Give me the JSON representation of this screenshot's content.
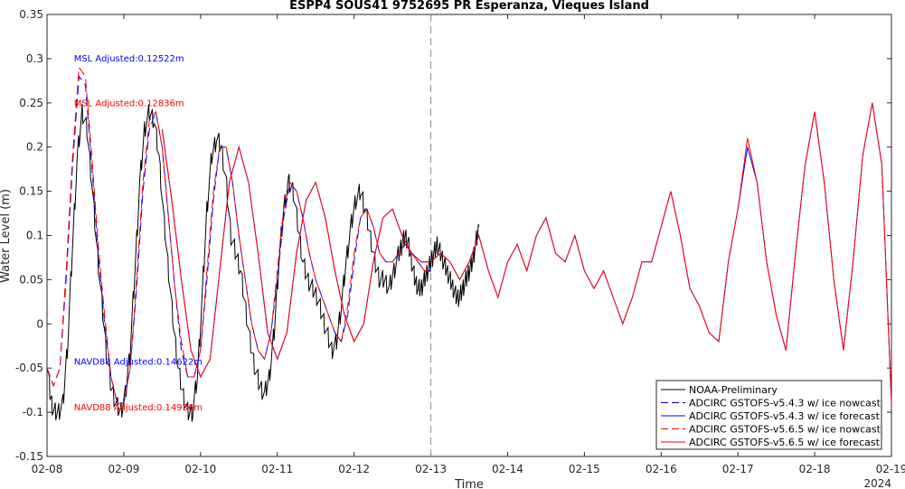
{
  "chart_data": {
    "type": "line",
    "title": "ESPP4 SOUS41 9752695 PR Esperanza, Vieques Island",
    "xlabel": "Time",
    "ylabel": "Water Level (m)",
    "year_label": "2024",
    "ylim": [
      -0.15,
      0.35
    ],
    "yticks": [
      "-0.15",
      "-0.1",
      "-0.05",
      "0",
      "0.05",
      "0.1",
      "0.15",
      "0.2",
      "0.25",
      "0.3",
      "0.35"
    ],
    "xlim": [
      "02-08",
      "02-19"
    ],
    "xticks": [
      "02-08",
      "02-09",
      "02-10",
      "02-11",
      "02-12",
      "02-13",
      "02-14",
      "02-15",
      "02-16",
      "02-17",
      "02-18",
      "02-19"
    ],
    "grid": false,
    "legend_position": "bottom-right",
    "nowcast_forecast_split": "02-13",
    "annotations": [
      {
        "text": "MSL Adjusted:0.12522m",
        "x": "02-08 08:24",
        "y": 0.297,
        "color": "#0000ff"
      },
      {
        "text": "MSL Adjusted:0.12836m",
        "x": "02-08 08:24",
        "y": 0.246,
        "color": "#ff0000"
      },
      {
        "text": "NAVD88 Adjusted:0.14622m",
        "x": "02-08 08:24",
        "y": -0.046,
        "color": "#0000ff"
      },
      {
        "text": "NAVD88 Adjusted:0.14936m",
        "x": "02-08 08:24",
        "y": -0.098,
        "color": "#ff0000"
      }
    ],
    "series": [
      {
        "name": "NOAA-Preliminary",
        "color": "#000000",
        "dash": "solid",
        "noisy": true,
        "x": [
          "02-08 00:00",
          "02-08 01:00",
          "02-08 02:00",
          "02-08 03:30",
          "02-08 05:00",
          "02-08 06:30",
          "02-08 08:00",
          "02-08 09:30",
          "02-08 11:00",
          "02-08 12:30",
          "02-08 14:00",
          "02-08 15:30",
          "02-08 17:00",
          "02-08 18:30",
          "02-08 20:00",
          "02-08 21:30",
          "02-08 23:00",
          "02-09 00:30",
          "02-09 02:00",
          "02-09 03:30",
          "02-09 05:00",
          "02-09 06:30",
          "02-09 08:00",
          "02-09 09:30",
          "02-09 11:00",
          "02-09 12:30",
          "02-09 14:00",
          "02-09 15:30",
          "02-09 17:00",
          "02-09 18:30",
          "02-09 20:00",
          "02-09 21:30",
          "02-09 23:00",
          "02-10 00:30",
          "02-10 02:00",
          "02-10 03:30",
          "02-10 05:00",
          "02-10 06:30",
          "02-10 08:00",
          "02-10 09:30",
          "02-10 11:00",
          "02-10 12:30",
          "02-10 14:00",
          "02-10 15:30",
          "02-10 17:00",
          "02-10 18:30",
          "02-10 20:00",
          "02-10 21:30",
          "02-10 23:00",
          "02-11 00:30",
          "02-11 02:00",
          "02-11 03:30",
          "02-11 05:00",
          "02-11 06:30",
          "02-11 08:00",
          "02-11 09:30",
          "02-11 11:00",
          "02-11 12:30",
          "02-11 14:00",
          "02-11 15:30",
          "02-11 17:00",
          "02-11 18:30",
          "02-11 20:00",
          "02-11 21:30",
          "02-11 23:00",
          "02-12 00:30",
          "02-12 02:00",
          "02-12 03:30",
          "02-12 05:00",
          "02-12 06:30",
          "02-12 08:00",
          "02-12 09:30",
          "02-12 11:00",
          "02-12 12:30",
          "02-12 14:00",
          "02-12 15:00",
          "02-12 16:00",
          "02-12 17:00",
          "02-12 18:00",
          "02-12 19:00",
          "02-12 20:00",
          "02-12 21:00",
          "02-12 22:00",
          "02-12 23:00",
          "02-13 00:00",
          "02-13 01:00",
          "02-13 02:00",
          "02-13 03:00",
          "02-13 04:00",
          "02-13 05:00",
          "02-13 06:00",
          "02-13 07:00",
          "02-13 08:00",
          "02-13 09:00",
          "02-13 10:00",
          "02-13 11:00",
          "02-13 12:00",
          "02-13 13:00",
          "02-13 14:00",
          "02-13 15:00"
        ],
        "y": [
          -0.04,
          -0.08,
          -0.1,
          -0.1,
          -0.09,
          -0.02,
          0.09,
          0.19,
          0.24,
          0.22,
          0.16,
          0.09,
          0.03,
          -0.03,
          -0.07,
          -0.09,
          -0.1,
          -0.08,
          -0.03,
          0.06,
          0.16,
          0.22,
          0.24,
          0.23,
          0.19,
          0.12,
          0.06,
          0.0,
          -0.05,
          -0.08,
          -0.1,
          -0.1,
          -0.06,
          0.03,
          0.13,
          0.19,
          0.21,
          0.2,
          0.16,
          0.1,
          0.08,
          0.06,
          0.02,
          -0.02,
          -0.05,
          -0.07,
          -0.08,
          -0.06,
          -0.01,
          0.07,
          0.13,
          0.16,
          0.15,
          0.11,
          0.07,
          0.05,
          0.04,
          0.03,
          0.01,
          -0.01,
          -0.03,
          -0.02,
          0.02,
          0.07,
          0.11,
          0.14,
          0.15,
          0.13,
          0.1,
          0.07,
          0.05,
          0.05,
          0.04,
          0.06,
          0.08,
          0.09,
          0.1,
          0.09,
          0.07,
          0.05,
          0.04,
          0.04,
          0.05,
          0.06,
          0.07,
          0.08,
          0.09,
          0.08,
          0.07,
          0.06,
          0.05,
          0.04,
          0.03,
          0.03,
          0.04,
          0.05,
          0.06,
          0.07,
          0.09,
          0.11
        ]
      },
      {
        "name": "ADCIRC GSTOFS-v5.4.3 w/ ice nowcast",
        "color": "#0000ff",
        "dash": "dashed",
        "x": [
          "02-08 00:00",
          "02-08 02:00",
          "02-08 04:00",
          "02-08 06:00",
          "02-08 08:00",
          "02-08 10:00",
          "02-08 12:00",
          "02-08 14:00",
          "02-08 16:00",
          "02-08 18:00",
          "02-08 20:00",
          "02-08 22:00",
          "02-09 00:00",
          "02-09 02:00",
          "02-09 04:00",
          "02-09 06:00",
          "02-09 08:00",
          "02-09 10:00",
          "02-09 12:00",
          "02-09 14:00",
          "02-09 16:00",
          "02-09 18:00",
          "02-09 20:00",
          "02-09 22:00",
          "02-10 00:00",
          "02-10 02:00",
          "02-10 04:00",
          "02-10 06:00",
          "02-10 08:00",
          "02-10 10:00",
          "02-10 12:00",
          "02-10 14:00",
          "02-10 16:00",
          "02-10 18:00",
          "02-10 20:00",
          "02-10 22:00",
          "02-11 00:00",
          "02-11 02:00",
          "02-11 04:00",
          "02-11 06:00",
          "02-11 08:00",
          "02-11 10:00",
          "02-11 12:00",
          "02-11 14:00",
          "02-11 16:00",
          "02-11 18:00",
          "02-11 20:00",
          "02-11 22:00",
          "02-12 00:00",
          "02-12 02:00",
          "02-12 04:00",
          "02-12 06:00",
          "02-12 08:00",
          "02-12 10:00",
          "02-12 12:00",
          "02-12 14:00",
          "02-12 16:00",
          "02-12 18:00",
          "02-12 20:00",
          "02-12 22:00",
          "02-13 00:00"
        ],
        "y": [
          -0.05,
          -0.07,
          -0.05,
          0.05,
          0.18,
          0.28,
          0.27,
          0.18,
          0.08,
          0.0,
          -0.06,
          -0.09,
          -0.09,
          -0.05,
          0.04,
          0.15,
          0.22,
          0.24,
          0.2,
          0.12,
          0.04,
          -0.03,
          -0.06,
          -0.06,
          -0.03,
          0.05,
          0.14,
          0.2,
          0.2,
          0.16,
          0.1,
          0.05,
          0.0,
          -0.03,
          -0.04,
          -0.01,
          0.05,
          0.12,
          0.16,
          0.15,
          0.12,
          0.08,
          0.05,
          0.03,
          0.01,
          -0.01,
          -0.02,
          0.01,
          0.07,
          0.12,
          0.13,
          0.11,
          0.08,
          0.07,
          0.07,
          0.08,
          0.09,
          0.08,
          0.07,
          0.06,
          0.06
        ]
      },
      {
        "name": "ADCIRC GSTOFS-v5.4.3 w/ ice forecast",
        "color": "#0000ff",
        "dash": "solid",
        "x": [
          "02-09 12:00",
          "02-09 15:00",
          "02-09 18:00",
          "02-09 21:00",
          "02-10 00:00",
          "02-10 03:00",
          "02-10 06:00",
          "02-10 09:00",
          "02-10 12:00",
          "02-10 15:00",
          "02-10 18:00",
          "02-10 21:00",
          "02-11 00:00",
          "02-11 03:00",
          "02-11 06:00",
          "02-11 09:00",
          "02-11 12:00",
          "02-11 15:00",
          "02-11 18:00",
          "02-11 21:00",
          "02-12 00:00",
          "02-12 03:00",
          "02-12 06:00",
          "02-12 09:00",
          "02-12 12:00",
          "02-12 15:00",
          "02-12 18:00",
          "02-12 21:00",
          "02-13 00:00",
          "02-13 03:00",
          "02-13 06:00",
          "02-13 09:00",
          "02-13 12:00",
          "02-13 15:00",
          "02-13 18:00",
          "02-13 21:00",
          "02-14 00:00",
          "02-14 03:00",
          "02-14 06:00",
          "02-14 09:00",
          "02-14 12:00",
          "02-14 15:00",
          "02-14 18:00",
          "02-14 21:00",
          "02-15 00:00",
          "02-15 03:00",
          "02-15 06:00",
          "02-15 09:00",
          "02-15 12:00",
          "02-15 15:00",
          "02-15 18:00",
          "02-15 21:00",
          "02-16 00:00",
          "02-16 03:00",
          "02-16 06:00",
          "02-16 09:00",
          "02-16 12:00",
          "02-16 15:00",
          "02-16 18:00",
          "02-16 21:00",
          "02-17 00:00",
          "02-17 03:00",
          "02-17 06:00",
          "02-17 09:00",
          "02-17 12:00",
          "02-17 15:00",
          "02-17 18:00",
          "02-17 21:00",
          "02-18 00:00",
          "02-18 03:00",
          "02-18 06:00",
          "02-18 09:00",
          "02-18 12:00",
          "02-18 15:00",
          "02-18 18:00",
          "02-18 21:00",
          "02-19 00:00"
        ],
        "y": [
          0.22,
          0.14,
          0.05,
          -0.03,
          -0.06,
          -0.04,
          0.06,
          0.16,
          0.2,
          0.16,
          0.08,
          -0.01,
          -0.04,
          -0.01,
          0.08,
          0.14,
          0.16,
          0.12,
          0.06,
          0.01,
          -0.02,
          0.0,
          0.07,
          0.12,
          0.13,
          0.1,
          0.08,
          0.07,
          0.07,
          0.08,
          0.07,
          0.05,
          0.07,
          0.1,
          0.06,
          0.03,
          0.07,
          0.09,
          0.06,
          0.1,
          0.12,
          0.08,
          0.07,
          0.1,
          0.06,
          0.04,
          0.06,
          0.03,
          0.0,
          0.03,
          0.07,
          0.07,
          0.11,
          0.15,
          0.1,
          0.04,
          0.02,
          -0.01,
          -0.02,
          0.07,
          0.13,
          0.2,
          0.16,
          0.07,
          0.01,
          -0.03,
          0.08,
          0.18,
          0.24,
          0.16,
          0.05,
          -0.03,
          0.07,
          0.19,
          0.25,
          0.18,
          -0.09
        ]
      },
      {
        "name": "ADCIRC GSTOFS-v5.6.5 w/ ice nowcast",
        "color": "#ff0000",
        "dash": "dashed",
        "x": [
          "02-08 00:00",
          "02-08 02:00",
          "02-08 04:00",
          "02-08 06:00",
          "02-08 08:00",
          "02-08 10:00",
          "02-08 12:00",
          "02-08 14:00",
          "02-08 16:00",
          "02-08 18:00",
          "02-08 20:00",
          "02-08 22:00",
          "02-09 00:00",
          "02-09 02:00",
          "02-09 04:00",
          "02-09 06:00",
          "02-09 08:00",
          "02-09 10:00",
          "02-09 12:00",
          "02-09 14:00",
          "02-09 16:00",
          "02-09 18:00",
          "02-09 20:00",
          "02-09 22:00",
          "02-10 00:00",
          "02-10 02:00",
          "02-10 04:00",
          "02-10 06:00",
          "02-10 08:00",
          "02-10 10:00",
          "02-10 12:00",
          "02-10 14:00",
          "02-10 16:00",
          "02-10 18:00",
          "02-10 20:00",
          "02-10 22:00",
          "02-11 00:00",
          "02-11 02:00",
          "02-11 04:00",
          "02-11 06:00",
          "02-11 08:00",
          "02-11 10:00",
          "02-11 12:00",
          "02-11 14:00",
          "02-11 16:00",
          "02-11 18:00",
          "02-11 20:00",
          "02-11 22:00",
          "02-12 00:00",
          "02-12 02:00",
          "02-12 04:00",
          "02-12 06:00",
          "02-12 08:00",
          "02-12 10:00",
          "02-12 12:00",
          "02-12 14:00",
          "02-12 16:00",
          "02-12 18:00",
          "02-12 20:00",
          "02-12 22:00",
          "02-13 00:00"
        ],
        "y": [
          -0.05,
          -0.07,
          -0.05,
          0.06,
          0.19,
          0.29,
          0.28,
          0.19,
          0.09,
          0.01,
          -0.06,
          -0.09,
          -0.09,
          -0.05,
          0.05,
          0.16,
          0.23,
          0.24,
          0.2,
          0.12,
          0.04,
          -0.02,
          -0.06,
          -0.06,
          -0.03,
          0.06,
          0.15,
          0.2,
          0.2,
          0.16,
          0.1,
          0.05,
          0.0,
          -0.03,
          -0.04,
          -0.01,
          0.06,
          0.13,
          0.16,
          0.15,
          0.12,
          0.08,
          0.05,
          0.03,
          0.01,
          -0.01,
          -0.02,
          0.02,
          0.08,
          0.12,
          0.13,
          0.11,
          0.08,
          0.07,
          0.07,
          0.08,
          0.09,
          0.08,
          0.07,
          0.06,
          0.06
        ]
      },
      {
        "name": "ADCIRC GSTOFS-v5.6.5 w/ ice forecast",
        "color": "#ff0000",
        "dash": "solid",
        "x": [
          "02-09 12:00",
          "02-09 15:00",
          "02-09 18:00",
          "02-09 21:00",
          "02-10 00:00",
          "02-10 03:00",
          "02-10 06:00",
          "02-10 09:00",
          "02-10 12:00",
          "02-10 15:00",
          "02-10 18:00",
          "02-10 21:00",
          "02-11 00:00",
          "02-11 03:00",
          "02-11 06:00",
          "02-11 09:00",
          "02-11 12:00",
          "02-11 15:00",
          "02-11 18:00",
          "02-11 21:00",
          "02-12 00:00",
          "02-12 03:00",
          "02-12 06:00",
          "02-12 09:00",
          "02-12 12:00",
          "02-12 15:00",
          "02-12 18:00",
          "02-12 21:00",
          "02-13 00:00",
          "02-13 03:00",
          "02-13 06:00",
          "02-13 09:00",
          "02-13 12:00",
          "02-13 15:00",
          "02-13 18:00",
          "02-13 21:00",
          "02-14 00:00",
          "02-14 03:00",
          "02-14 06:00",
          "02-14 09:00",
          "02-14 12:00",
          "02-14 15:00",
          "02-14 18:00",
          "02-14 21:00",
          "02-15 00:00",
          "02-15 03:00",
          "02-15 06:00",
          "02-15 09:00",
          "02-15 12:00",
          "02-15 15:00",
          "02-15 18:00",
          "02-15 21:00",
          "02-16 00:00",
          "02-16 03:00",
          "02-16 06:00",
          "02-16 09:00",
          "02-16 12:00",
          "02-16 15:00",
          "02-16 18:00",
          "02-16 21:00",
          "02-17 00:00",
          "02-17 03:00",
          "02-17 06:00",
          "02-17 09:00",
          "02-17 12:00",
          "02-17 15:00",
          "02-17 18:00",
          "02-17 21:00",
          "02-18 00:00",
          "02-18 03:00",
          "02-18 06:00",
          "02-18 09:00",
          "02-18 12:00",
          "02-18 15:00",
          "02-18 18:00",
          "02-18 21:00",
          "02-19 00:00"
        ],
        "y": [
          0.22,
          0.14,
          0.05,
          -0.03,
          -0.06,
          -0.04,
          0.06,
          0.16,
          0.2,
          0.16,
          0.08,
          -0.01,
          -0.04,
          -0.01,
          0.08,
          0.14,
          0.16,
          0.12,
          0.06,
          0.01,
          -0.02,
          0.0,
          0.07,
          0.12,
          0.13,
          0.1,
          0.08,
          0.07,
          0.07,
          0.08,
          0.07,
          0.05,
          0.07,
          0.1,
          0.06,
          0.03,
          0.07,
          0.09,
          0.06,
          0.1,
          0.12,
          0.08,
          0.07,
          0.1,
          0.06,
          0.04,
          0.06,
          0.03,
          0.0,
          0.03,
          0.07,
          0.07,
          0.11,
          0.15,
          0.1,
          0.04,
          0.02,
          -0.01,
          -0.02,
          0.07,
          0.13,
          0.21,
          0.16,
          0.07,
          0.01,
          -0.03,
          0.08,
          0.18,
          0.24,
          0.16,
          0.05,
          -0.03,
          0.07,
          0.19,
          0.25,
          0.18,
          -0.09
        ]
      }
    ]
  }
}
